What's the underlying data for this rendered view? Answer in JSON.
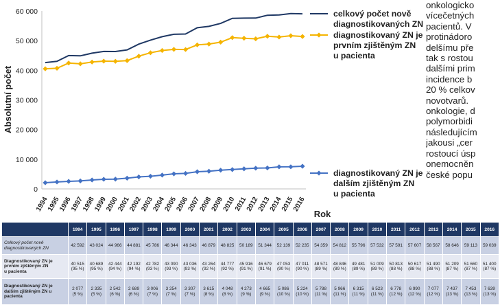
{
  "chart_data": {
    "type": "line",
    "ylabel": "Absolutní počet",
    "xlabel": "Rok",
    "ylim": [
      0,
      60000
    ],
    "y_ticks": [
      "0",
      "10 000",
      "20 000",
      "30 000",
      "40 000",
      "50 000",
      "60 000"
    ],
    "y_tick_values": [
      0,
      10000,
      20000,
      30000,
      40000,
      50000,
      60000
    ],
    "categories": [
      "1994",
      "1995",
      "1996",
      "1997",
      "1998",
      "1999",
      "2000",
      "2001",
      "2002",
      "2003",
      "2004",
      "2005",
      "2006",
      "2007",
      "2008",
      "2009",
      "2010",
      "2011",
      "2012",
      "2013",
      "2014",
      "2015",
      "2016"
    ],
    "series": [
      {
        "name": "celkový počet nově diagnostikovaných ZN",
        "legend_lines": [
          "celkový počet nově",
          "diagnostikovaných ZN"
        ],
        "color": "#1f3864",
        "marker": "none",
        "values": [
          42592,
          43024,
          44966,
          44881,
          45786,
          46344,
          46343,
          46879,
          48825,
          50189,
          51344,
          52139,
          52235,
          54359,
          54812,
          55796,
          57532,
          57591,
          57607,
          58567,
          58646,
          59113,
          59039
        ]
      },
      {
        "name": "diagnostikovaný ZN je prvním zjištěným ZN u pacienta",
        "legend_lines": [
          "diagnostikovaný ZN je",
          "prvním zjištěným ZN",
          "u pacienta"
        ],
        "color": "#f5b400",
        "marker": "diamond",
        "values": [
          40515,
          40689,
          42444,
          42192,
          42782,
          43090,
          43036,
          43264,
          44777,
          45916,
          46679,
          47053,
          47011,
          48571,
          48846,
          49481,
          51009,
          50813,
          50617,
          51490,
          51209,
          51660,
          51400
        ]
      },
      {
        "name": "diagnostikovaný ZN je dalším zjištěným ZN u pacienta",
        "legend_lines": [
          "diagnostikovaný ZN je",
          "dalším zjištěným ZN",
          "u pacienta"
        ],
        "color": "#4472c4",
        "marker": "diamond",
        "values": [
          2077,
          2335,
          2542,
          2689,
          3006,
          3254,
          3307,
          3615,
          4048,
          4273,
          4665,
          5086,
          5224,
          5788,
          5966,
          6315,
          6523,
          6778,
          6990,
          7077,
          7437,
          7453,
          7639
        ]
      }
    ]
  },
  "side_text": {
    "lines": [
      "onkologicko",
      "vícečetných",
      "pacientů. V",
      "protinádoro",
      "delšímu pře",
      "tak s rostou",
      "dalšími prim",
      "incidence b",
      "20 % celkov",
      "novotvarů.",
      "onkologie, d",
      "polymorbidi",
      "následujícím",
      "jakousi „cer",
      "rostoucí úsp",
      "onemocněn",
      "české popu"
    ]
  },
  "table": {
    "years": [
      "1994",
      "1995",
      "1996",
      "1997",
      "1998",
      "1999",
      "2000",
      "2001",
      "2002",
      "2003",
      "2004",
      "2005",
      "2006",
      "2007",
      "2008",
      "2009",
      "2010",
      "2011",
      "2012",
      "2013",
      "2014",
      "2015",
      "2016"
    ],
    "rows": [
      {
        "label": [
          "Celkový počet nově",
          "diagnostikovaných ZN"
        ],
        "cells": [
          [
            "42 592"
          ],
          [
            "43 024"
          ],
          [
            "44 966"
          ],
          [
            "44 881"
          ],
          [
            "45 786"
          ],
          [
            "46 344"
          ],
          [
            "46 343"
          ],
          [
            "46 879"
          ],
          [
            "48 825"
          ],
          [
            "50 189"
          ],
          [
            "51 344"
          ],
          [
            "52 139"
          ],
          [
            "52 235"
          ],
          [
            "54 359"
          ],
          [
            "54 812"
          ],
          [
            "55 796"
          ],
          [
            "57 532"
          ],
          [
            "57 591"
          ],
          [
            "57 607"
          ],
          [
            "58 567"
          ],
          [
            "58 646"
          ],
          [
            "59 113"
          ],
          [
            "59 039"
          ]
        ]
      },
      {
        "label": [
          "Diagnostikovaný ZN je",
          "prvním zjištěným ZN",
          "u pacienta"
        ],
        "cells": [
          [
            "40 515",
            "(95 %)"
          ],
          [
            "40 689",
            "(95 %)"
          ],
          [
            "42 444",
            "(94 %)"
          ],
          [
            "42 192",
            "(94 %)"
          ],
          [
            "42 782",
            "(93 %)"
          ],
          [
            "43 090",
            "(93 %)"
          ],
          [
            "43 036",
            "(93 %)"
          ],
          [
            "43 264",
            "(92 %)"
          ],
          [
            "44 777",
            "(92 %)"
          ],
          [
            "45 916",
            "(91 %)"
          ],
          [
            "46 679",
            "(91 %)"
          ],
          [
            "47 053",
            "(90 %)"
          ],
          [
            "47 011",
            "(90 %)"
          ],
          [
            "48 571",
            "(89 %)"
          ],
          [
            "48 846",
            "(89 %)"
          ],
          [
            "49 481",
            "(89 %)"
          ],
          [
            "51 009",
            "(89 %)"
          ],
          [
            "50 813",
            "(88 %)"
          ],
          [
            "50 617",
            "(88 %)"
          ],
          [
            "51 490",
            "(88 %)"
          ],
          [
            "51 209",
            "(87 %)"
          ],
          [
            "51 660",
            "(87 %)"
          ],
          [
            "51 400",
            "(87 %)"
          ]
        ]
      },
      {
        "label": [
          "Diagnostikovaný ZN je",
          "dalším zjištěným ZN u",
          "pacienta"
        ],
        "cells": [
          [
            "2 077",
            "(5 %)"
          ],
          [
            "2 335",
            "(5 %)"
          ],
          [
            "2 542",
            "(6 %)"
          ],
          [
            "2 689",
            "(6 %)"
          ],
          [
            "3 006",
            "(7 %)"
          ],
          [
            "3 254",
            "(7 %)"
          ],
          [
            "3 307",
            "(7 %)"
          ],
          [
            "3 615",
            "(8 %)"
          ],
          [
            "4 048",
            "(8 %)"
          ],
          [
            "4 273",
            "(9 %)"
          ],
          [
            "4 665",
            "(9 %)"
          ],
          [
            "5 086",
            "(10 %)"
          ],
          [
            "5 224",
            "(10 %)"
          ],
          [
            "5 788",
            "(11 %)"
          ],
          [
            "5 966",
            "(11 %)"
          ],
          [
            "6 315",
            "(11 %)"
          ],
          [
            "6 523",
            "(11 %)"
          ],
          [
            "6 778",
            "(12 %)"
          ],
          [
            "6 990",
            "(12 %)"
          ],
          [
            "7 077",
            "(12 %)"
          ],
          [
            "7 437",
            "(13 %)"
          ],
          [
            "7 453",
            "(13 %)"
          ],
          [
            "7 639",
            "(13 %)"
          ]
        ]
      }
    ]
  }
}
